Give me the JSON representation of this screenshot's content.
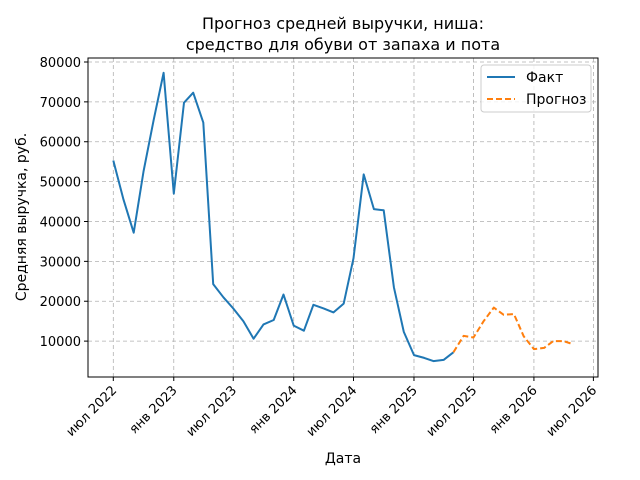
{
  "chart_data": {
    "type": "line",
    "title_line1": "Прогноз средней выручки, ниша:",
    "title_line2": "средство для обуви от запаха и пота",
    "xlabel": "Дата",
    "ylabel": "Средняя выручка, руб.",
    "ylim": [
      1000,
      81000
    ],
    "y_ticks": [
      10000,
      20000,
      30000,
      40000,
      50000,
      60000,
      70000,
      80000
    ],
    "x_ticks": [
      {
        "label": "июл 2022",
        "date": "2022-07-01"
      },
      {
        "label": "янв 2023",
        "date": "2023-01-01"
      },
      {
        "label": "июл 2023",
        "date": "2023-07-01"
      },
      {
        "label": "янв 2024",
        "date": "2024-01-01"
      },
      {
        "label": "июл 2024",
        "date": "2024-07-01"
      },
      {
        "label": "янв 2025",
        "date": "2025-01-01"
      },
      {
        "label": "июл 2025",
        "date": "2025-07-01"
      },
      {
        "label": "янв 2026",
        "date": "2026-01-01"
      },
      {
        "label": "июл 2026",
        "date": "2026-07-01"
      }
    ],
    "xlim": [
      "2022-04-15",
      "2026-07-15"
    ],
    "grid": true,
    "legend_position": "top-right",
    "series": [
      {
        "name": "Факт",
        "color": "#1f77b4",
        "style": "solid",
        "points": [
          [
            "2022-07-01",
            55300
          ],
          [
            "2022-08-01",
            45500
          ],
          [
            "2022-09-01",
            37200
          ],
          [
            "2022-10-01",
            52500
          ],
          [
            "2022-11-01",
            65500
          ],
          [
            "2022-12-01",
            77300
          ],
          [
            "2023-01-01",
            47000
          ],
          [
            "2023-02-01",
            69800
          ],
          [
            "2023-03-01",
            72300
          ],
          [
            "2023-04-01",
            64800
          ],
          [
            "2023-05-01",
            24300
          ],
          [
            "2023-06-01",
            21000
          ],
          [
            "2023-07-01",
            18200
          ],
          [
            "2023-08-01",
            15000
          ],
          [
            "2023-09-01",
            10600
          ],
          [
            "2023-10-01",
            14200
          ],
          [
            "2023-11-01",
            15300
          ],
          [
            "2023-12-01",
            21700
          ],
          [
            "2024-01-01",
            13900
          ],
          [
            "2024-02-01",
            12600
          ],
          [
            "2024-03-01",
            19100
          ],
          [
            "2024-04-01",
            18200
          ],
          [
            "2024-05-01",
            17200
          ],
          [
            "2024-06-01",
            19400
          ],
          [
            "2024-07-01",
            30800
          ],
          [
            "2024-08-01",
            51800
          ],
          [
            "2024-09-01",
            43100
          ],
          [
            "2024-10-01",
            42800
          ],
          [
            "2024-11-01",
            23500
          ],
          [
            "2024-12-01",
            12300
          ],
          [
            "2025-01-01",
            6500
          ],
          [
            "2025-02-01",
            5800
          ],
          [
            "2025-03-01",
            5000
          ],
          [
            "2025-04-01",
            5300
          ],
          [
            "2025-05-01",
            7200
          ]
        ]
      },
      {
        "name": "Прогноз",
        "color": "#ff7f0e",
        "style": "dashed",
        "points": [
          [
            "2025-05-01",
            7200
          ],
          [
            "2025-06-01",
            11300
          ],
          [
            "2025-07-01",
            10900
          ],
          [
            "2025-08-01",
            15000
          ],
          [
            "2025-09-01",
            18400
          ],
          [
            "2025-10-01",
            16600
          ],
          [
            "2025-11-01",
            16800
          ],
          [
            "2025-12-01",
            11200
          ],
          [
            "2026-01-01",
            8000
          ],
          [
            "2026-02-01",
            8300
          ],
          [
            "2026-03-01",
            10000
          ],
          [
            "2026-04-01",
            10000
          ],
          [
            "2026-05-01",
            9200
          ]
        ]
      }
    ]
  }
}
